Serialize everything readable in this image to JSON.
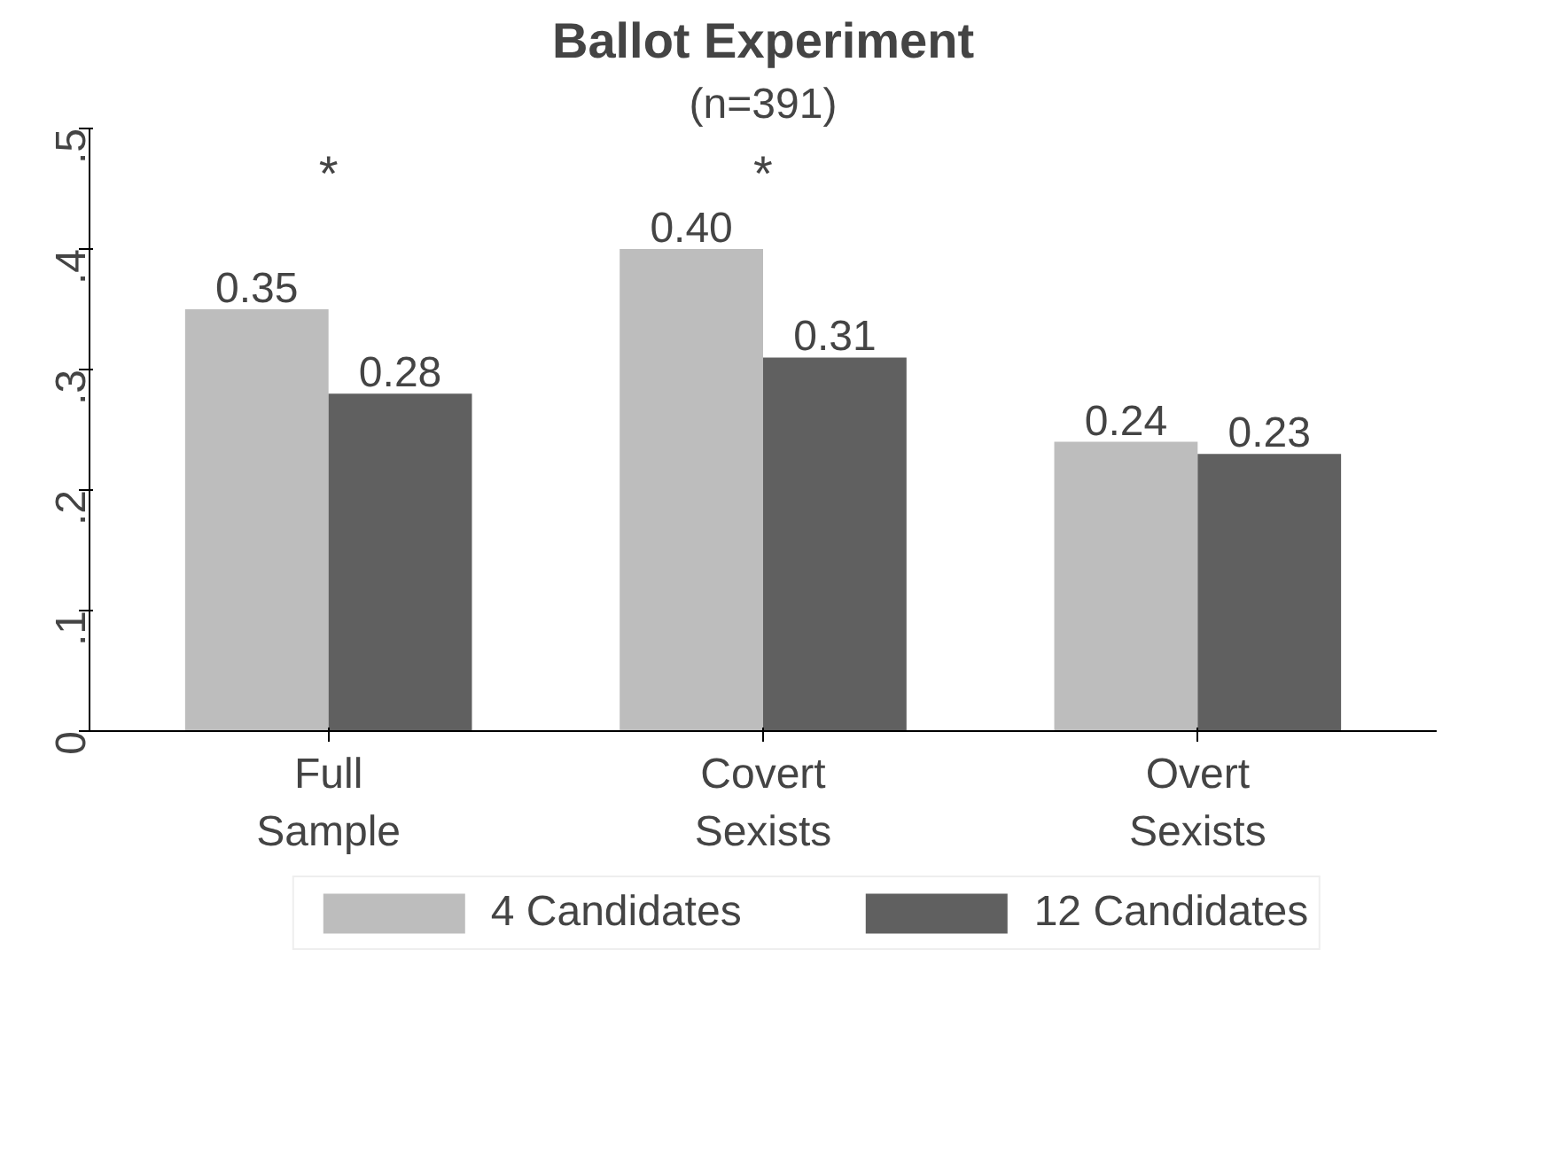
{
  "chart_data": {
    "type": "bar",
    "title": "Ballot Experiment",
    "subtitle": "(n=391)",
    "categories": [
      "Full Sample",
      "Covert Sexists",
      "Overt Sexists"
    ],
    "series": [
      {
        "name": "4 Candidates",
        "color": "#bdbdbd",
        "values": [
          0.35,
          0.4,
          0.24
        ],
        "value_labels": [
          "0.35",
          "0.40",
          "0.24"
        ]
      },
      {
        "name": "12 Candidates",
        "color": "#606060",
        "values": [
          0.28,
          0.31,
          0.23
        ],
        "value_labels": [
          "0.28",
          "0.31",
          "0.23"
        ]
      }
    ],
    "ylim": [
      0,
      0.5
    ],
    "yticks": [
      0,
      {
        "value": 0.1,
        "label": ".1"
      },
      {
        "value": 0.2,
        "label": ".2"
      },
      {
        "value": 0.3,
        "label": ".3"
      },
      {
        "value": 0.4,
        "label": ".4"
      },
      {
        "value": 0.5,
        "label": ".5"
      }
    ],
    "annotations": [
      "*",
      "*"
    ],
    "grid": false,
    "legend": "bottom"
  }
}
